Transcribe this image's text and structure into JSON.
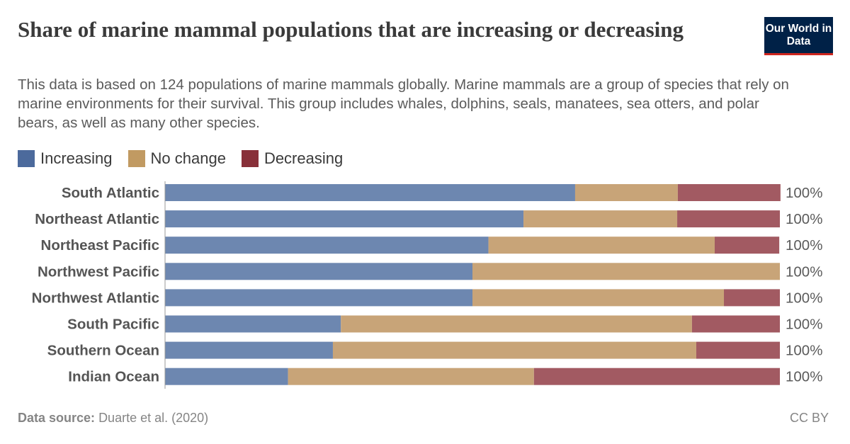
{
  "header": {
    "title": "Share of marine mammal populations that are increasing or decreasing",
    "subtitle": "This data is based on 124 populations of marine mammals globally. Marine mammals are a group of species that rely on marine environments for their survival. This group includes whales, dolphins, seals, manatees, sea otters, and polar bears, as well as many other species.",
    "logo_text": "Our World in Data"
  },
  "footer": {
    "source_label": "Data source:",
    "source_value": "Duarte et al. (2020)",
    "license": "CC BY"
  },
  "chart_data": {
    "type": "bar",
    "orientation": "horizontal",
    "stacked": true,
    "unit": "%",
    "xlim": [
      0,
      100
    ],
    "grid": false,
    "legend_position": "top-left",
    "categories": [
      "South Atlantic",
      "Northeast Atlantic",
      "Northeast Pacific",
      "Northwest Pacific",
      "Northwest Atlantic",
      "South Pacific",
      "Southern Ocean",
      "Indian Ocean"
    ],
    "totals_labels": [
      "100%",
      "100%",
      "100%",
      "100%",
      "100%",
      "100%",
      "100%",
      "100%"
    ],
    "series": [
      {
        "name": "Increasing",
        "color": "#4c6a9c",
        "values": [
          66.7,
          58.3,
          52.6,
          50,
          50,
          28.6,
          27.3,
          20
        ]
      },
      {
        "name": "No change",
        "color": "#c19a62",
        "values": [
          16.7,
          25,
          36.8,
          50,
          40.9,
          57.1,
          59.1,
          40
        ]
      },
      {
        "name": "Decreasing",
        "color": "#883039",
        "values": [
          16.7,
          16.7,
          10.5,
          0,
          9.1,
          14.3,
          13.6,
          40
        ]
      }
    ]
  }
}
